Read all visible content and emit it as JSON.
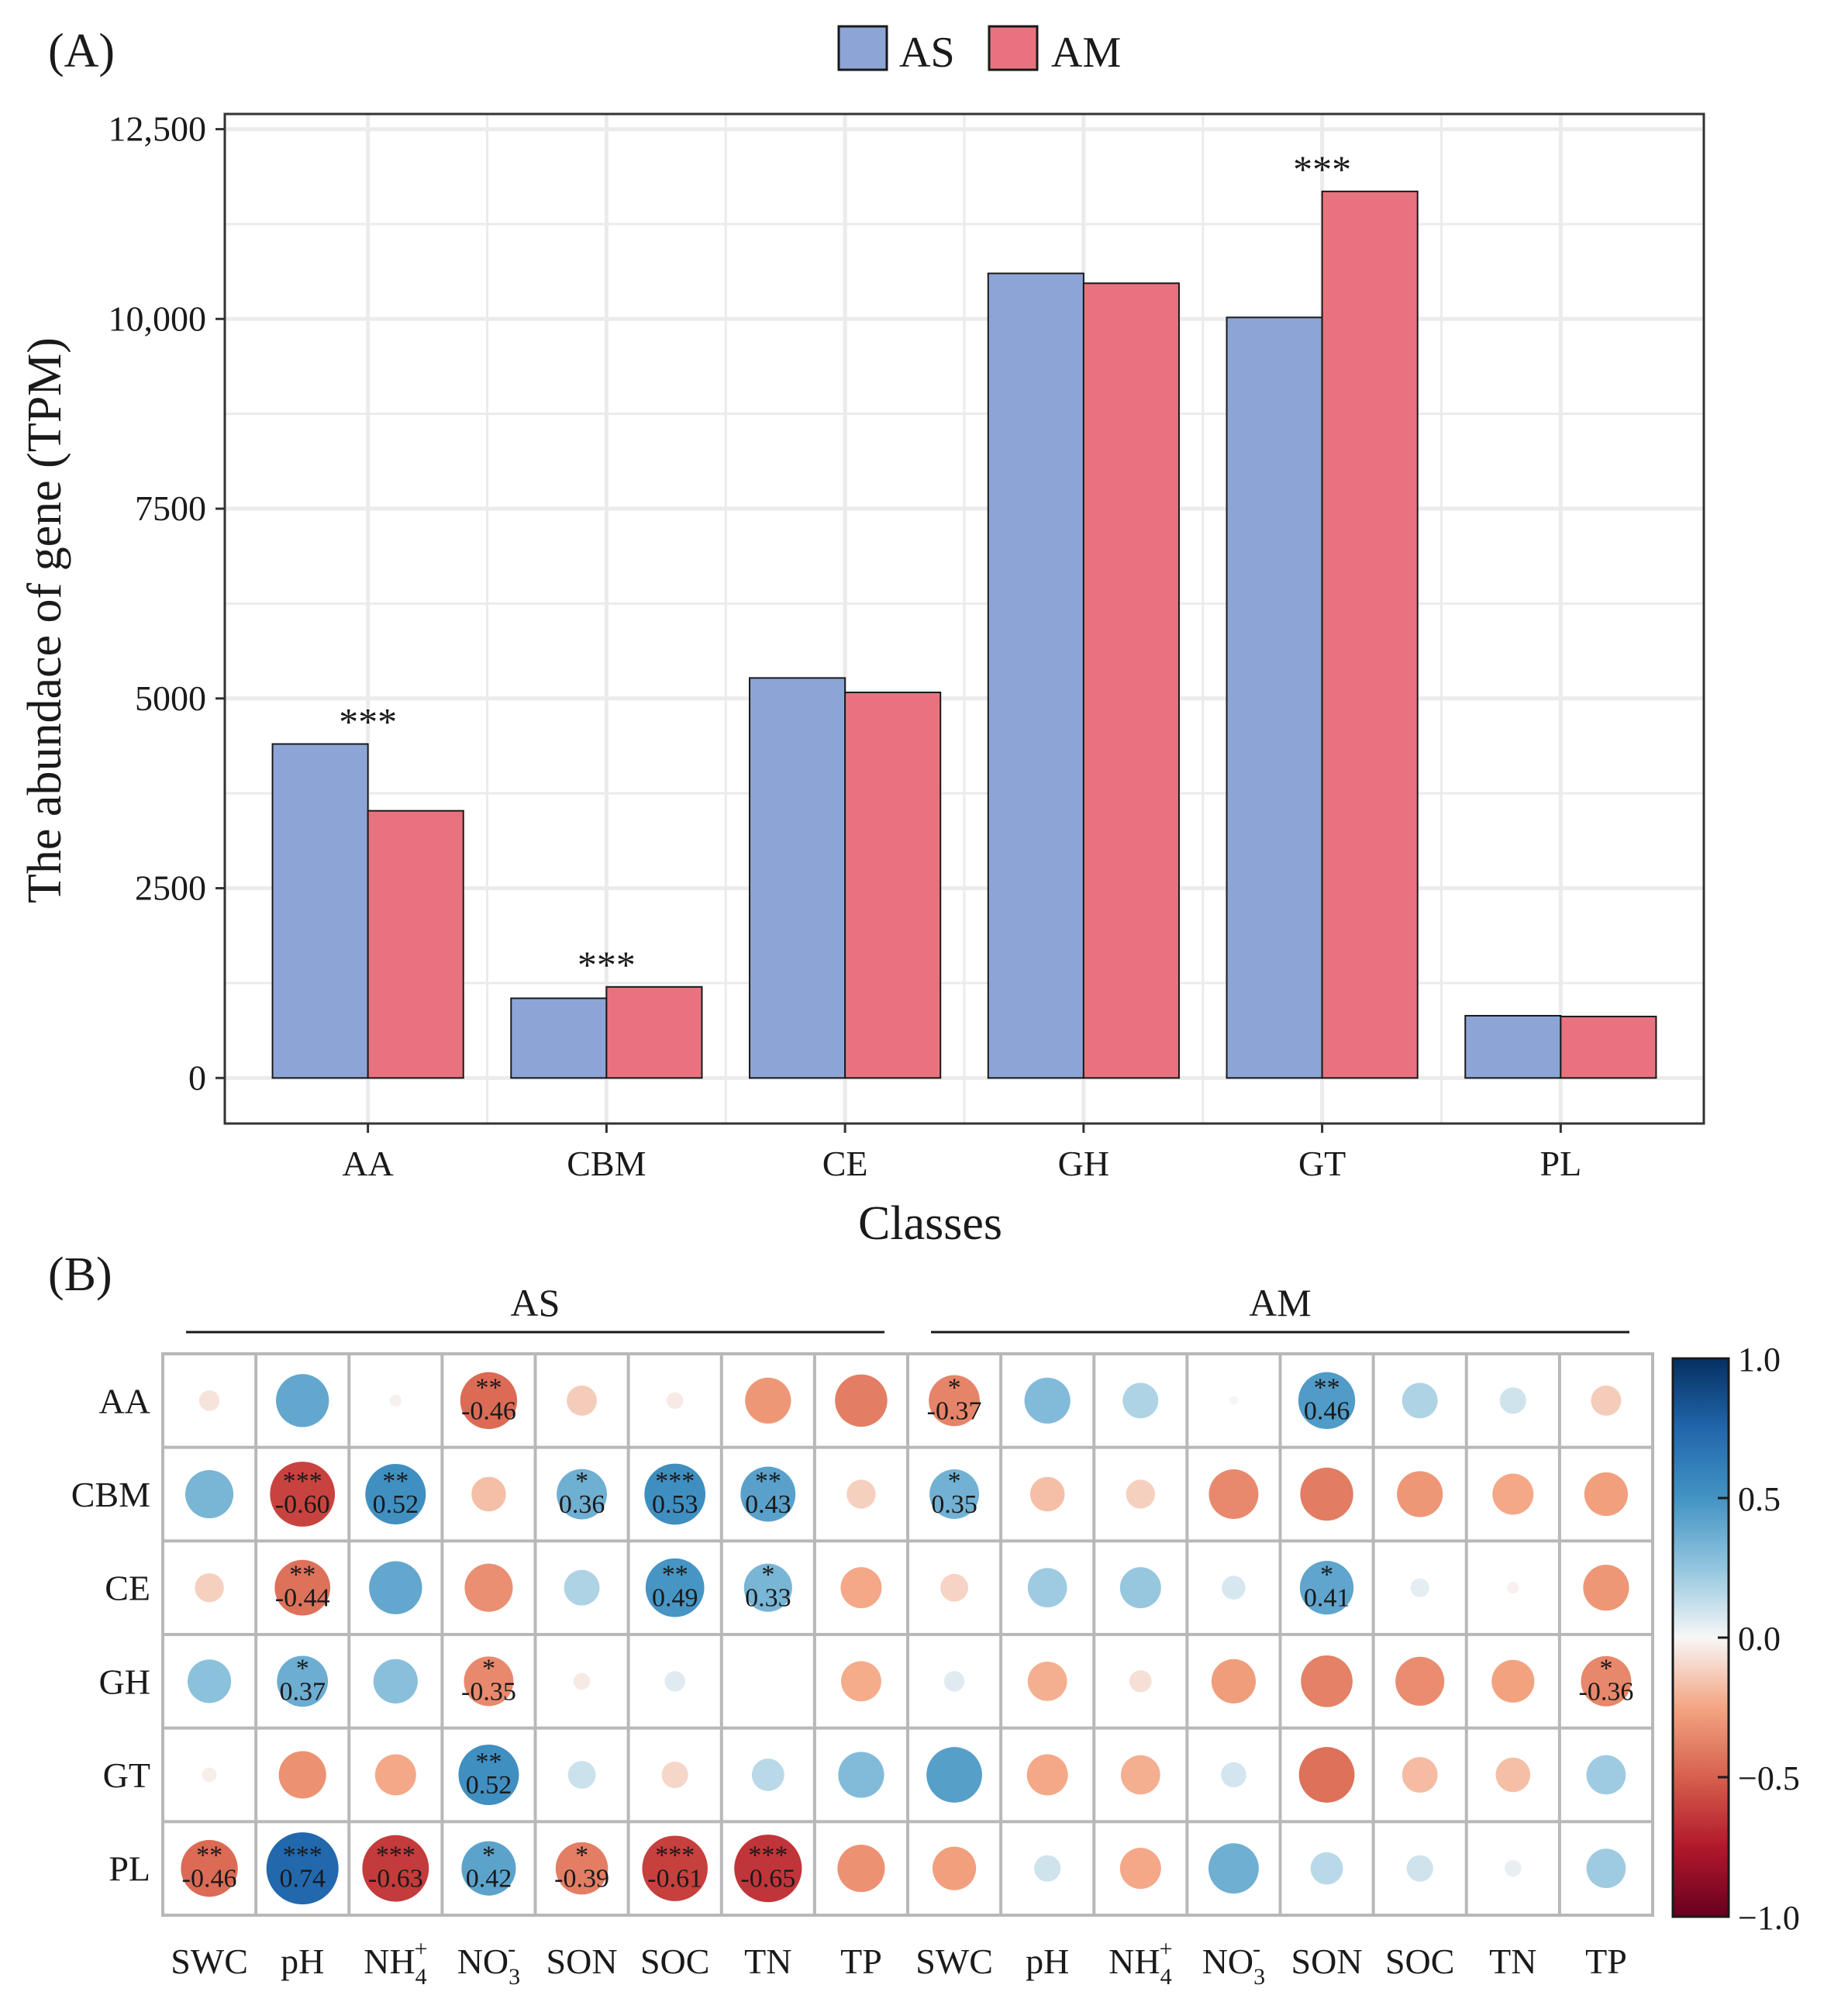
{
  "panel_a_label": "(A)",
  "panel_b_label": "(B)",
  "chart_data": [
    {
      "type": "bar",
      "title": "",
      "xlabel": "Classes",
      "ylabel": "The abundace of gene (TPM)",
      "categories": [
        "AA",
        "CBM",
        "CE",
        "GH",
        "GT",
        "PL"
      ],
      "series": [
        {
          "name": "AS",
          "color": "#8da5d6",
          "values": [
            4400,
            1050,
            5270,
            10600,
            10020,
            820
          ]
        },
        {
          "name": "AM",
          "color": "#e8737f",
          "values": [
            3520,
            1200,
            5080,
            10470,
            11680,
            810
          ]
        }
      ],
      "significance": [
        {
          "category": "AA",
          "label": "***"
        },
        {
          "category": "CBM",
          "label": "***"
        },
        {
          "category": "GT",
          "label": "***"
        }
      ],
      "yticks": [
        0,
        2500,
        5000,
        7500,
        10000,
        12500
      ],
      "ytick_labels": [
        "0",
        "2500",
        "5000",
        "7500",
        "10,000",
        "12,500"
      ],
      "ylim": [
        -600,
        12700
      ],
      "legend": "top"
    },
    {
      "type": "heatmap",
      "subtype": "correlation circles",
      "groups": [
        {
          "name": "AS",
          "columns": [
            "SWC",
            "pH",
            "NH4+",
            "NO3-",
            "SON",
            "SOC",
            "TN",
            "TP"
          ]
        },
        {
          "name": "AM",
          "columns": [
            "SWC",
            "pH",
            "NH4+",
            "NO3-",
            "SON",
            "SOC",
            "TN",
            "TP"
          ]
        }
      ],
      "rows": [
        "AA",
        "CBM",
        "CE",
        "GH",
        "GT",
        "PL"
      ],
      "matrix": [
        [
          -0.06,
          0.4,
          -0.02,
          -0.46,
          -0.13,
          -0.04,
          -0.3,
          -0.39,
          -0.37,
          0.3,
          0.18,
          -0.01,
          0.46,
          0.18,
          0.1,
          -0.13
        ],
        [
          0.33,
          -0.6,
          0.52,
          -0.17,
          0.36,
          0.53,
          0.43,
          -0.12,
          0.35,
          -0.17,
          -0.12,
          -0.35,
          -0.4,
          -0.3,
          -0.24,
          -0.27
        ],
        [
          -0.12,
          -0.44,
          0.4,
          -0.33,
          0.18,
          0.49,
          0.33,
          -0.24,
          -0.11,
          0.22,
          0.24,
          0.08,
          0.41,
          0.05,
          -0.02,
          -0.3
        ],
        [
          0.27,
          0.37,
          0.28,
          -0.35,
          -0.04,
          0.06,
          0.0,
          -0.23,
          0.06,
          -0.22,
          -0.07,
          -0.28,
          -0.38,
          -0.34,
          -0.26,
          -0.36
        ],
        [
          -0.03,
          -0.32,
          -0.24,
          0.52,
          0.11,
          -0.1,
          0.15,
          0.3,
          0.44,
          -0.24,
          -0.22,
          0.09,
          -0.44,
          -0.18,
          -0.17,
          0.22
        ],
        [
          -0.46,
          0.74,
          -0.63,
          0.42,
          -0.39,
          -0.61,
          -0.65,
          -0.32,
          -0.27,
          0.1,
          -0.24,
          0.36,
          0.15,
          0.1,
          0.04,
          0.22
        ]
      ],
      "annotations": [
        {
          "row": 0,
          "col": 3,
          "stars": "**",
          "value": "-0.46"
        },
        {
          "row": 0,
          "col": 8,
          "stars": "*",
          "value": "-0.37"
        },
        {
          "row": 0,
          "col": 12,
          "stars": "**",
          "value": "0.46"
        },
        {
          "row": 1,
          "col": 1,
          "stars": "***",
          "value": "-0.60"
        },
        {
          "row": 1,
          "col": 2,
          "stars": "**",
          "value": "0.52"
        },
        {
          "row": 1,
          "col": 4,
          "stars": "*",
          "value": "0.36"
        },
        {
          "row": 1,
          "col": 5,
          "stars": "***",
          "value": "0.53"
        },
        {
          "row": 1,
          "col": 6,
          "stars": "**",
          "value": "0.43"
        },
        {
          "row": 1,
          "col": 8,
          "stars": "*",
          "value": "0.35"
        },
        {
          "row": 2,
          "col": 1,
          "stars": "**",
          "value": "-0.44"
        },
        {
          "row": 2,
          "col": 5,
          "stars": "**",
          "value": "0.49"
        },
        {
          "row": 2,
          "col": 6,
          "stars": "*",
          "value": "0.33"
        },
        {
          "row": 2,
          "col": 12,
          "stars": "*",
          "value": "0.41"
        },
        {
          "row": 3,
          "col": 1,
          "stars": "*",
          "value": "0.37"
        },
        {
          "row": 3,
          "col": 3,
          "stars": "*",
          "value": "-0.35"
        },
        {
          "row": 3,
          "col": 15,
          "stars": "*",
          "value": "-0.36"
        },
        {
          "row": 4,
          "col": 3,
          "stars": "**",
          "value": "0.52"
        },
        {
          "row": 5,
          "col": 0,
          "stars": "**",
          "value": "-0.46"
        },
        {
          "row": 5,
          "col": 1,
          "stars": "***",
          "value": "0.74"
        },
        {
          "row": 5,
          "col": 2,
          "stars": "***",
          "value": "-0.63"
        },
        {
          "row": 5,
          "col": 3,
          "stars": "*",
          "value": "0.42"
        },
        {
          "row": 5,
          "col": 4,
          "stars": "*",
          "value": "-0.39"
        },
        {
          "row": 5,
          "col": 5,
          "stars": "***",
          "value": "-0.61"
        },
        {
          "row": 5,
          "col": 6,
          "stars": "***",
          "value": "-0.65"
        }
      ],
      "colorbar": {
        "range": [
          -1.0,
          1.0
        ],
        "ticks": [
          1.0,
          0.5,
          0.0,
          -0.5,
          -1.0
        ],
        "tick_labels": [
          "1.0",
          "0.5",
          "0.0",
          "−0.5",
          "−1.0"
        ]
      }
    }
  ]
}
